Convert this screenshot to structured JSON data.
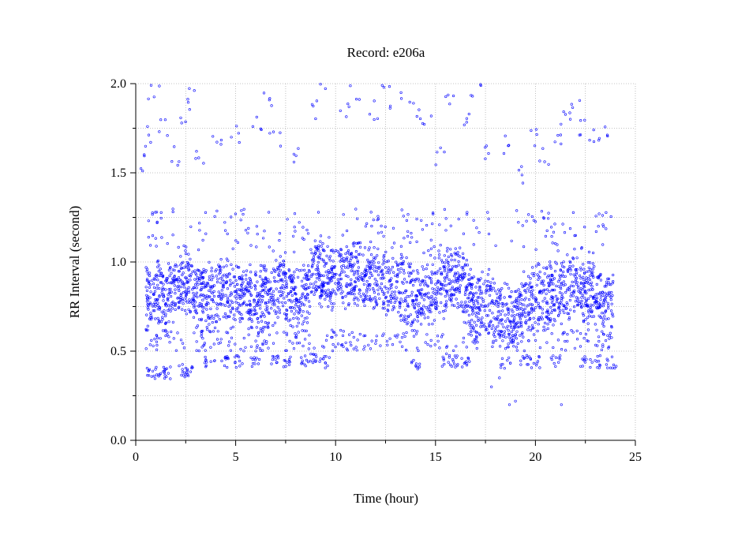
{
  "chart_data": {
    "type": "scatter",
    "title": "Record:  e206a",
    "xlabel": "Time (hour)",
    "ylabel": "RR Interval (second)",
    "xlim": [
      0,
      25
    ],
    "ylim": [
      0.0,
      2.0
    ],
    "x_ticks": [
      0,
      5,
      10,
      15,
      20,
      25
    ],
    "x_tick_labels": [
      "0",
      "5",
      "10",
      "15",
      "20",
      "25"
    ],
    "y_ticks": [
      0.0,
      0.5,
      1.0,
      1.5,
      2.0
    ],
    "y_tick_labels": [
      "0.0",
      "0.5",
      "1.0",
      "1.5",
      "2.0"
    ],
    "grid": true,
    "marker_color": "#0000ff",
    "series": [
      {
        "values_description": "RR interval samples (hour, seconds)",
        "main_band": [
          [
            0.5,
            0.82
          ],
          [
            1.0,
            0.84
          ],
          [
            1.5,
            0.8
          ],
          [
            2.0,
            0.86
          ],
          [
            2.5,
            0.9
          ],
          [
            3.0,
            0.82
          ],
          [
            3.5,
            0.8
          ],
          [
            4.0,
            0.8
          ],
          [
            4.5,
            0.84
          ],
          [
            5.0,
            0.82
          ],
          [
            5.5,
            0.8
          ],
          [
            6.0,
            0.78
          ],
          [
            6.5,
            0.8
          ],
          [
            7.0,
            0.84
          ],
          [
            7.5,
            0.82
          ],
          [
            8.0,
            0.82
          ],
          [
            8.5,
            0.8
          ],
          [
            9.0,
            0.95
          ],
          [
            9.5,
            0.92
          ],
          [
            10.0,
            0.9
          ],
          [
            10.5,
            0.92
          ],
          [
            11.0,
            0.93
          ],
          [
            11.5,
            0.9
          ],
          [
            12.0,
            0.92
          ],
          [
            12.5,
            0.9
          ],
          [
            13.0,
            0.88
          ],
          [
            13.5,
            0.84
          ],
          [
            14.0,
            0.78
          ],
          [
            14.5,
            0.82
          ],
          [
            15.0,
            0.86
          ],
          [
            15.5,
            0.88
          ],
          [
            16.0,
            0.9
          ],
          [
            16.5,
            0.86
          ],
          [
            17.0,
            0.7
          ],
          [
            17.5,
            0.8
          ],
          [
            18.0,
            0.72
          ],
          [
            18.5,
            0.7
          ],
          [
            19.0,
            0.68
          ],
          [
            19.5,
            0.76
          ],
          [
            20.0,
            0.8
          ],
          [
            20.5,
            0.82
          ],
          [
            21.0,
            0.82
          ],
          [
            21.5,
            0.86
          ],
          [
            22.0,
            0.88
          ],
          [
            22.5,
            0.84
          ],
          [
            23.0,
            0.8
          ],
          [
            23.5,
            0.74
          ],
          [
            23.9,
            0.76
          ]
        ],
        "lower_band": [
          [
            0.8,
            0.39
          ],
          [
            1.2,
            0.38
          ],
          [
            1.6,
            0.38
          ],
          [
            2.4,
            0.4
          ],
          [
            2.6,
            0.38
          ],
          [
            3.7,
            0.44
          ],
          [
            4.5,
            0.44
          ],
          [
            5.2,
            0.44
          ],
          [
            6.0,
            0.44
          ],
          [
            7.0,
            0.44
          ],
          [
            7.5,
            0.44
          ],
          [
            8.5,
            0.44
          ],
          [
            9.0,
            0.45
          ],
          [
            9.5,
            0.44
          ],
          [
            14.0,
            0.43
          ],
          [
            15.5,
            0.45
          ],
          [
            16.0,
            0.44
          ],
          [
            16.5,
            0.44
          ],
          [
            18.5,
            0.43
          ],
          [
            19.5,
            0.45
          ],
          [
            20.0,
            0.44
          ],
          [
            21.0,
            0.44
          ],
          [
            22.5,
            0.44
          ],
          [
            23.0,
            0.44
          ],
          [
            23.8,
            0.44
          ]
        ],
        "upper_outliers": [
          [
            0.4,
            1.55
          ],
          [
            0.6,
            1.7
          ],
          [
            0.9,
            1.95
          ],
          [
            1.3,
            1.75
          ],
          [
            2.0,
            1.6
          ],
          [
            2.5,
            1.8
          ],
          [
            2.8,
            1.95
          ],
          [
            3.2,
            1.6
          ],
          [
            4.0,
            1.65
          ],
          [
            5.0,
            1.72
          ],
          [
            6.0,
            1.8
          ],
          [
            6.5,
            1.9
          ],
          [
            7.0,
            1.7
          ],
          [
            8.0,
            1.6
          ],
          [
            9.0,
            1.85
          ],
          [
            9.5,
            1.97
          ],
          [
            10.5,
            1.85
          ],
          [
            11.0,
            1.97
          ],
          [
            12.0,
            1.85
          ],
          [
            12.5,
            1.98
          ],
          [
            13.0,
            1.9
          ],
          [
            14.0,
            1.85
          ],
          [
            14.5,
            1.8
          ],
          [
            15.2,
            1.6
          ],
          [
            15.8,
            1.94
          ],
          [
            16.5,
            1.8
          ],
          [
            17.0,
            1.97
          ],
          [
            17.5,
            1.6
          ],
          [
            18.5,
            1.65
          ],
          [
            19.2,
            1.5
          ],
          [
            20.0,
            1.7
          ],
          [
            20.5,
            1.6
          ],
          [
            21.0,
            1.7
          ],
          [
            21.5,
            1.8
          ],
          [
            22.0,
            1.85
          ],
          [
            22.5,
            1.75
          ],
          [
            23.0,
            1.7
          ],
          [
            23.5,
            1.75
          ]
        ],
        "low_outliers": [
          [
            18.7,
            0.2
          ],
          [
            19.0,
            0.22
          ],
          [
            21.3,
            0.2
          ],
          [
            17.8,
            0.3
          ],
          [
            18.2,
            0.35
          ]
        ]
      }
    ]
  }
}
